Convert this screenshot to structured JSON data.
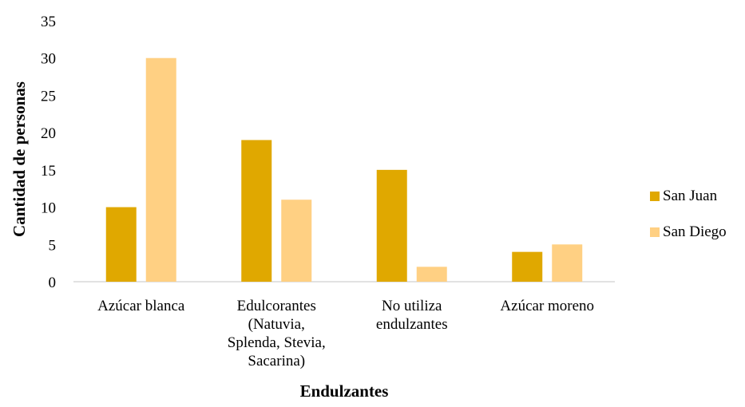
{
  "chart_data": {
    "type": "bar",
    "categories": [
      [
        "Azúcar blanca"
      ],
      [
        "Edulcorantes",
        "(Natuvia,",
        "Splenda, Stevia,",
        "Sacarina)"
      ],
      [
        "No utiliza",
        "endulzantes"
      ],
      [
        "Azúcar moreno"
      ]
    ],
    "series": [
      {
        "name": "San Juan",
        "color": "#E0A800",
        "values": [
          10,
          19,
          15,
          4
        ]
      },
      {
        "name": "San Diego",
        "color": "#FFD083",
        "values": [
          30,
          11,
          2,
          5
        ]
      }
    ],
    "xlabel": "Endulzantes",
    "ylabel": "Cantidad de personas",
    "ylim": [
      0,
      35
    ],
    "yticks": [
      0,
      5,
      10,
      15,
      20,
      25,
      30,
      35
    ],
    "grid": false,
    "legend": "right"
  }
}
